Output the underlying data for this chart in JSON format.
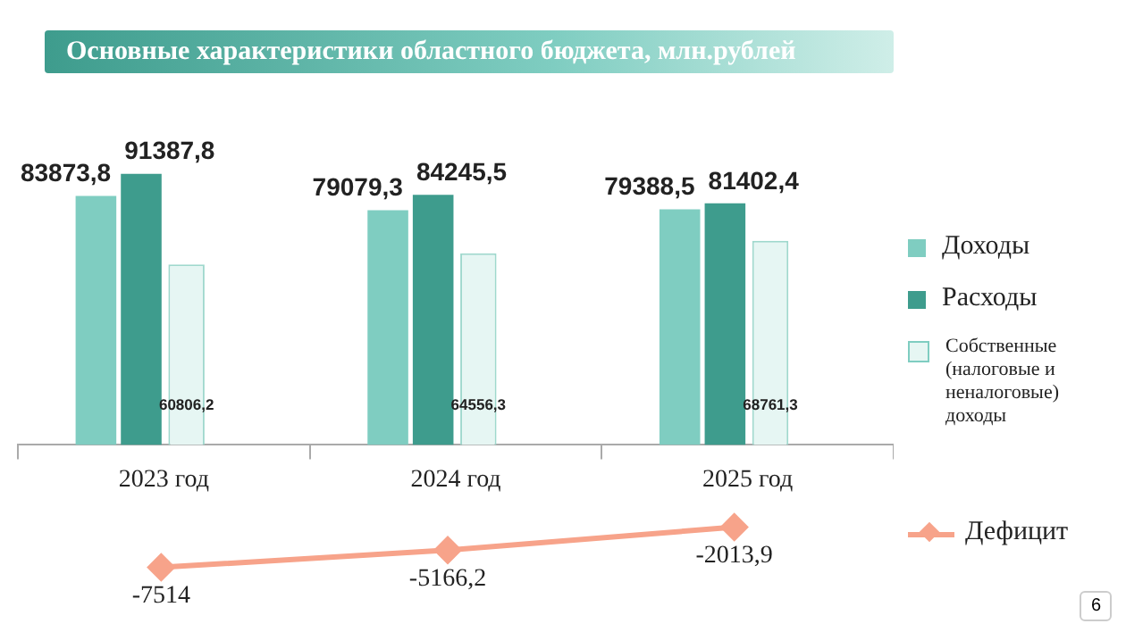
{
  "chart_data": [
    {
      "type": "bar",
      "title": "Основные характеристики областного бюджета, млн.рублей",
      "categories": [
        "2023 год",
        "2024 год",
        "2025 год"
      ],
      "series": [
        {
          "name": "Доходы",
          "color": "#7fcdc1",
          "values": [
            83873.8,
            79079.3,
            79388.5
          ],
          "value_labels": [
            "83873,8",
            "79079,3",
            "79388,5"
          ]
        },
        {
          "name": "Расходы",
          "color": "#3e9c8d",
          "values": [
            91387.8,
            84245.5,
            81402.4
          ],
          "value_labels": [
            "91387,8",
            "84245,5",
            "81402,4"
          ]
        },
        {
          "name": "Собственные (налоговые и неналоговые) доходы",
          "color": "#e6f6f3",
          "values": [
            60806.2,
            64556.3,
            68761.3
          ],
          "value_labels": [
            "60806,2",
            "64556,3",
            "68761,3"
          ]
        }
      ],
      "legend": "right",
      "grid": false
    },
    {
      "type": "line",
      "categories": [
        null,
        null,
        null
      ],
      "series": [
        {
          "name": "Дефицит",
          "color": "#f7a38a",
          "values": [
            -7514,
            -5166.2,
            -2013.9
          ],
          "value_labels": [
            "-7514",
            "-5166,2",
            "-2013,9"
          ]
        }
      ],
      "legend": "right",
      "grid": false,
      "marker": "diamond",
      "line_style": "solid",
      "annotations": [
        "6"
      ]
    }
  ]
}
